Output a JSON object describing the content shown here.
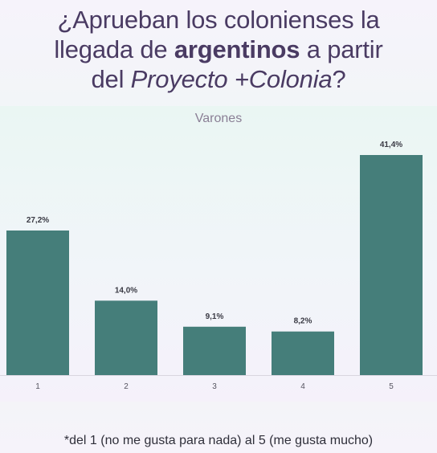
{
  "title": {
    "part1": "¿Aprueban los colonienses la",
    "part2": "llegada de ",
    "bold": "argentinos",
    "part3": " a partir",
    "part4": "del ",
    "italic": "Proyecto +Colonia",
    "part5": "?"
  },
  "footnote": "*del 1 (no me gusta para nada) al 5 (me gusta mucho)",
  "colors": {
    "bar": "#457e7a",
    "title": "#4a3b63",
    "subtitle": "#8a7f95",
    "label": "#3a3a44"
  },
  "chart_data": {
    "type": "bar",
    "subtitle": "Varones",
    "categories": [
      "1",
      "2",
      "3",
      "4",
      "5"
    ],
    "values": [
      27.2,
      14.0,
      9.1,
      8.2,
      41.4
    ],
    "value_labels": [
      "27,2%",
      "14,0%",
      "9,1%",
      "8,2%",
      "41,4%"
    ],
    "xlabel": "",
    "ylabel": "",
    "ylim": [
      0,
      41.4
    ],
    "grid": false,
    "legend": "none"
  }
}
